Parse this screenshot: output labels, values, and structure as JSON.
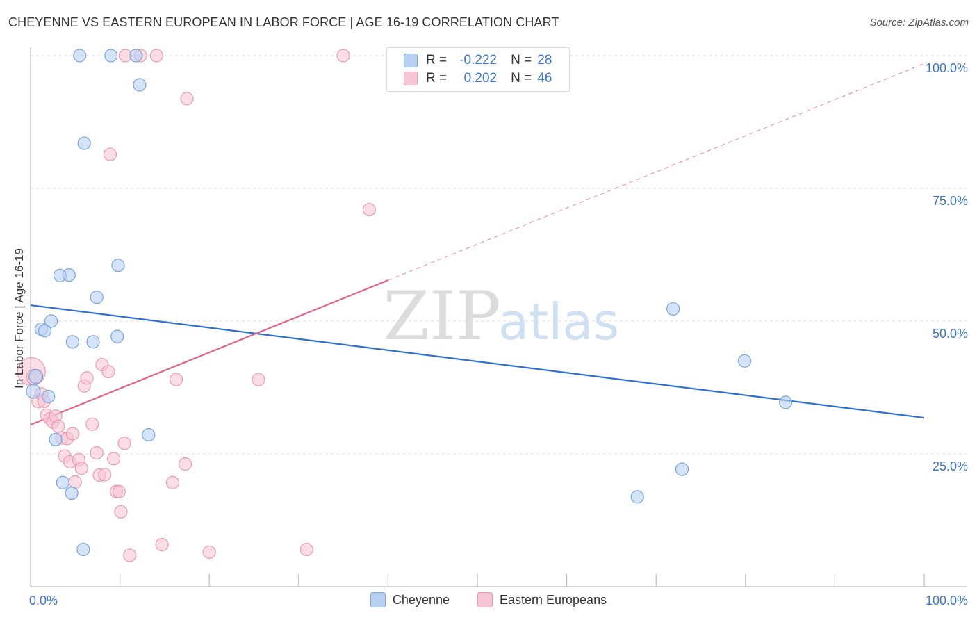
{
  "title": "CHEYENNE VS EASTERN EUROPEAN IN LABOR FORCE | AGE 16-19 CORRELATION CHART",
  "source": "Source: ZipAtlas.com",
  "watermark": {
    "zip": "ZIP",
    "atlas": "atlas"
  },
  "legend": {
    "series1": {
      "r_label": "R =",
      "r_value": "-0.222",
      "n_label": "N =",
      "n_value": "28"
    },
    "series2": {
      "r_label": "R =",
      "r_value": "0.202",
      "n_label": "N =",
      "n_value": "46"
    }
  },
  "bottom_legend": {
    "series1": "Cheyenne",
    "series2": "Eastern Europeans"
  },
  "colors": {
    "blue_fill": "#b8d0f2",
    "blue_stroke": "#7aa3d8",
    "blue_line": "#2e6fd0",
    "pink_fill": "#f8c6d6",
    "pink_stroke": "#e89ab4",
    "pink_line": "#e0628e",
    "tick_label": "#3b74c4",
    "grid": "#dddddd"
  },
  "chart_data": {
    "type": "scatter",
    "title": "CHEYENNE VS EASTERN EUROPEAN IN LABOR FORCE | AGE 16-19 CORRELATION CHART",
    "xlabel": "",
    "ylabel": "In Labor Force | Age 16-19",
    "xlim": [
      0,
      100
    ],
    "ylim": [
      0,
      100
    ],
    "x_tick_labels": [
      "0.0%",
      "100.0%"
    ],
    "y_ticks": [
      25,
      50,
      75,
      100
    ],
    "y_tick_labels": [
      "25.0%",
      "50.0%",
      "75.0%",
      "100.0%"
    ],
    "series": [
      {
        "name": "Cheyenne",
        "R": -0.222,
        "N": 28,
        "trend": {
          "x0": 0,
          "y0": 53.0,
          "x1": 100,
          "y1": 31.8,
          "dashed_from": null
        },
        "points": [
          [
            0.3,
            36.8,
            10
          ],
          [
            0.6,
            39.6,
            10
          ],
          [
            1.2,
            48.5,
            9
          ],
          [
            1.6,
            48.2,
            9
          ],
          [
            2.0,
            35.8,
            9
          ],
          [
            2.3,
            50.0,
            9
          ],
          [
            2.8,
            27.7,
            9
          ],
          [
            3.3,
            58.6,
            9
          ],
          [
            3.6,
            19.6,
            9
          ],
          [
            4.3,
            58.7,
            9
          ],
          [
            4.6,
            17.6,
            9
          ],
          [
            4.7,
            46.1,
            9
          ],
          [
            5.5,
            100.0,
            9
          ],
          [
            5.9,
            7.0,
            9
          ],
          [
            6.0,
            83.5,
            9
          ],
          [
            7.0,
            46.1,
            9
          ],
          [
            7.4,
            54.5,
            9
          ],
          [
            9.0,
            100.0,
            9
          ],
          [
            9.7,
            47.1,
            9
          ],
          [
            9.8,
            60.5,
            9
          ],
          [
            11.8,
            100.0,
            9
          ],
          [
            12.2,
            94.5,
            9
          ],
          [
            13.2,
            28.6,
            9
          ],
          [
            67.9,
            16.9,
            9
          ],
          [
            71.9,
            52.3,
            9
          ],
          [
            72.9,
            22.1,
            9
          ],
          [
            79.9,
            42.5,
            9
          ],
          [
            84.5,
            34.7,
            9
          ]
        ]
      },
      {
        "name": "Eastern Europeans",
        "R": 0.202,
        "N": 46,
        "trend": {
          "x0": 0,
          "y0": 30.5,
          "x1": 100,
          "y1": 98.5,
          "dashed_from": 40
        },
        "points": [
          [
            0.1,
            40.5,
            20
          ],
          [
            0.4,
            39.5,
            11
          ],
          [
            0.9,
            35.0,
            10
          ],
          [
            1.2,
            36.3,
            9
          ],
          [
            1.5,
            34.9,
            9
          ],
          [
            1.8,
            32.3,
            9
          ],
          [
            2.2,
            31.6,
            9
          ],
          [
            2.5,
            31.0,
            9
          ],
          [
            2.8,
            32.1,
            9
          ],
          [
            3.1,
            30.2,
            9
          ],
          [
            3.5,
            28.0,
            9
          ],
          [
            3.8,
            24.6,
            9
          ],
          [
            4.1,
            27.9,
            9
          ],
          [
            4.4,
            23.5,
            9
          ],
          [
            4.7,
            28.8,
            9
          ],
          [
            5.0,
            19.7,
            9
          ],
          [
            5.4,
            23.9,
            9
          ],
          [
            5.7,
            22.3,
            9
          ],
          [
            6.0,
            37.8,
            9
          ],
          [
            6.3,
            39.3,
            9
          ],
          [
            6.9,
            30.6,
            9
          ],
          [
            7.4,
            25.2,
            9
          ],
          [
            7.7,
            21.0,
            9
          ],
          [
            8.0,
            41.8,
            9
          ],
          [
            8.3,
            21.1,
            9
          ],
          [
            8.7,
            40.5,
            9
          ],
          [
            8.9,
            81.4,
            9
          ],
          [
            9.3,
            24.1,
            9
          ],
          [
            9.6,
            17.9,
            9
          ],
          [
            9.9,
            17.9,
            9
          ],
          [
            10.1,
            14.1,
            9
          ],
          [
            10.5,
            27.0,
            9
          ],
          [
            10.6,
            100.0,
            9
          ],
          [
            11.1,
            5.9,
            9
          ],
          [
            12.3,
            100.0,
            9
          ],
          [
            14.1,
            100.0,
            9
          ],
          [
            14.7,
            7.9,
            9
          ],
          [
            15.9,
            19.6,
            9
          ],
          [
            16.3,
            39.0,
            9
          ],
          [
            17.3,
            23.1,
            9
          ],
          [
            17.5,
            91.9,
            9
          ],
          [
            20.0,
            6.5,
            9
          ],
          [
            25.5,
            39.0,
            9
          ],
          [
            30.9,
            7.0,
            9
          ],
          [
            35.0,
            100.0,
            9
          ],
          [
            37.9,
            71.0,
            9
          ]
        ]
      }
    ]
  }
}
